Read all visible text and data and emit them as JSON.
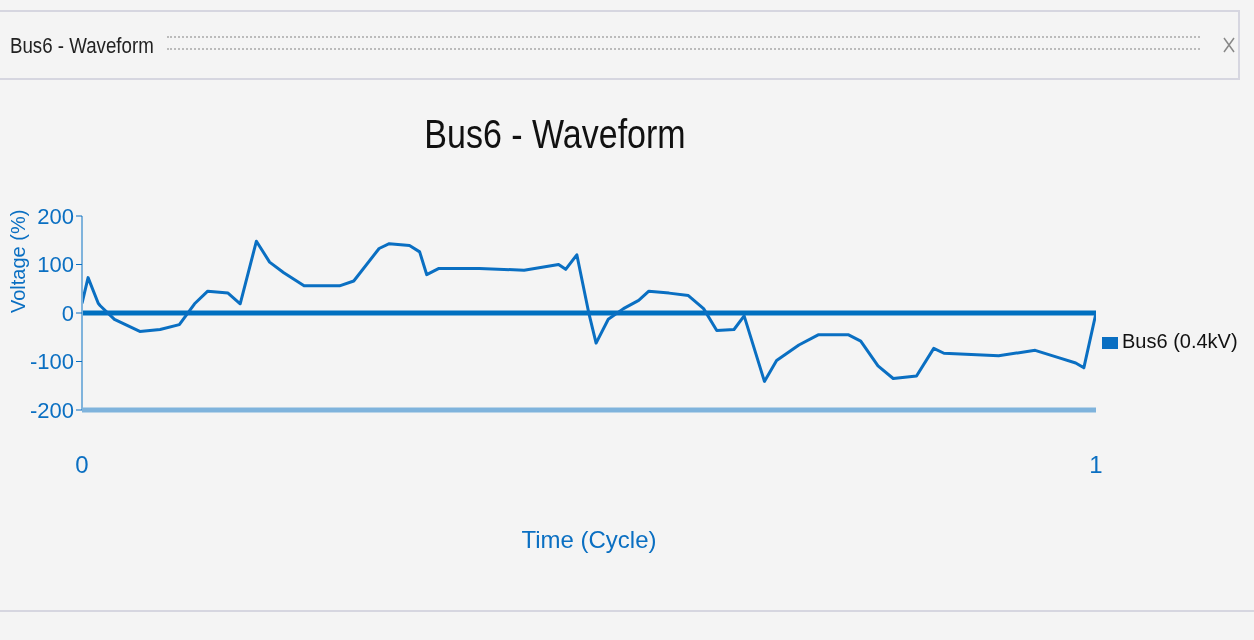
{
  "chart_data": {
    "type": "line",
    "title": "Bus6 - Waveform",
    "xlabel": "Time (Cycle)",
    "ylabel": "Voltage (%)",
    "annotations": [
      "Bus6 - Waveform"
    ],
    "x": [
      0,
      0.006,
      0.016,
      0.018,
      0.032,
      0.057,
      0.077,
      0.096,
      0.111,
      0.124,
      0.144,
      0.156,
      0.172,
      0.185,
      0.199,
      0.219,
      0.254,
      0.268,
      0.293,
      0.303,
      0.323,
      0.333,
      0.34,
      0.352,
      0.392,
      0.436,
      0.47,
      0.477,
      0.488,
      0.5,
      0.507,
      0.519,
      0.534,
      0.549,
      0.559,
      0.579,
      0.598,
      0.613,
      0.626,
      0.643,
      0.653,
      0.673,
      0.685,
      0.707,
      0.726,
      0.756,
      0.768,
      0.785,
      0.8,
      0.823,
      0.84,
      0.85,
      0.904,
      0.94,
      0.963,
      0.98,
      0.988,
      1
    ],
    "series": [
      {
        "name": "Bus6 (0.4kV)",
        "color": "#0a6fc2",
        "values": [
          20,
          73,
          20,
          15,
          -13,
          -38,
          -34,
          -24,
          19,
          45,
          41,
          19,
          148,
          105,
          83,
          56,
          56,
          66,
          133,
          143,
          139,
          126,
          79,
          92,
          92,
          88,
          100,
          90,
          120,
          -2,
          -62,
          -13,
          9,
          26,
          45,
          41,
          36,
          9,
          -36,
          -34,
          -6,
          -141,
          -98,
          -66,
          -45,
          -45,
          -58,
          -109,
          -135,
          -130,
          -73,
          -83,
          -88,
          -77,
          -92,
          -103,
          -113,
          0
        ]
      }
    ],
    "xlim": [
      0,
      1
    ],
    "xticks": [
      0,
      1
    ],
    "ylim": [
      -200,
      200
    ],
    "yticks": [
      -200,
      -100,
      0,
      100,
      200
    ],
    "ref_lines": [
      {
        "axis": "y",
        "value": 0,
        "color": "#0070c0"
      }
    ],
    "legend": "right",
    "marker": "none",
    "line_style": "solid"
  }
}
